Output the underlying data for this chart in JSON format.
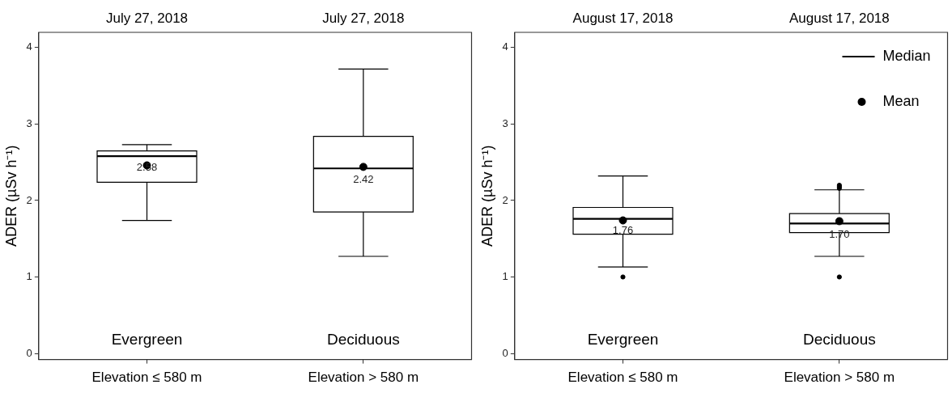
{
  "chart_data": [
    {
      "type": "box",
      "categories": [
        "Elevation ≤ 580 m",
        "Elevation > 580 m"
      ],
      "ylabel": "ADER (µSv h⁻¹)",
      "ylim": [
        -0.08,
        4.2
      ],
      "yticks": [
        0,
        1,
        2,
        3,
        4
      ],
      "grid": false,
      "legend": false,
      "series": [
        {
          "type": "box",
          "color": "#000000",
          "boxes": [
            {
              "low": 1.74,
              "q1": 2.24,
              "median": 2.58,
              "q3": 2.65,
              "high": 2.73
            },
            {
              "low": 1.27,
              "q1": 1.85,
              "median": 2.42,
              "q3": 2.84,
              "high": 3.72
            }
          ]
        },
        {
          "type": "scatter",
          "color": "#000000",
          "x": [
            "Elevation ≤ 580 m",
            "Elevation > 580 m"
          ],
          "values": [
            2.46,
            2.44
          ]
        }
      ],
      "annotations": [
        "July 27, 2018",
        "July 27, 2018",
        {
          "text": "2.58",
          "x": "Elevation ≤ 580 m",
          "y": 2.58
        },
        {
          "text": "2.42",
          "x": "Elevation > 580 m",
          "y": 2.42
        },
        "Evergreen",
        "Deciduous"
      ]
    },
    {
      "type": "box",
      "categories": [
        "Elevation ≤ 580 m",
        "Elevation > 580 m"
      ],
      "ylabel": "ADER (µSv h⁻¹)",
      "ylim": [
        -0.08,
        4.2
      ],
      "yticks": [
        0,
        1,
        2,
        3,
        4
      ],
      "grid": false,
      "legend": "top right",
      "series": [
        {
          "type": "box",
          "name": "Median",
          "color": "#000000",
          "boxes": [
            {
              "low": 1.13,
              "q1": 1.56,
              "median": 1.76,
              "q3": 1.91,
              "high": 2.32,
              "outliers": [
                1.0
              ]
            },
            {
              "low": 1.27,
              "q1": 1.58,
              "median": 1.7,
              "q3": 1.83,
              "high": 2.14,
              "outliers": [
                1.0,
                2.16,
                2.18,
                2.2
              ]
            }
          ]
        },
        {
          "type": "scatter",
          "name": "Mean",
          "color": "#000000",
          "x": [
            "Elevation ≤ 580 m",
            "Elevation > 580 m"
          ],
          "values": [
            1.74,
            1.73
          ]
        }
      ],
      "annotations": [
        "August 17, 2018",
        "August 17, 2018",
        {
          "text": "1.76",
          "x": "Elevation ≤ 580 m",
          "y": 1.76
        },
        {
          "text": "1.70",
          "x": "Elevation > 580 m",
          "y": 1.7
        },
        "Evergreen",
        "Deciduous"
      ]
    }
  ]
}
